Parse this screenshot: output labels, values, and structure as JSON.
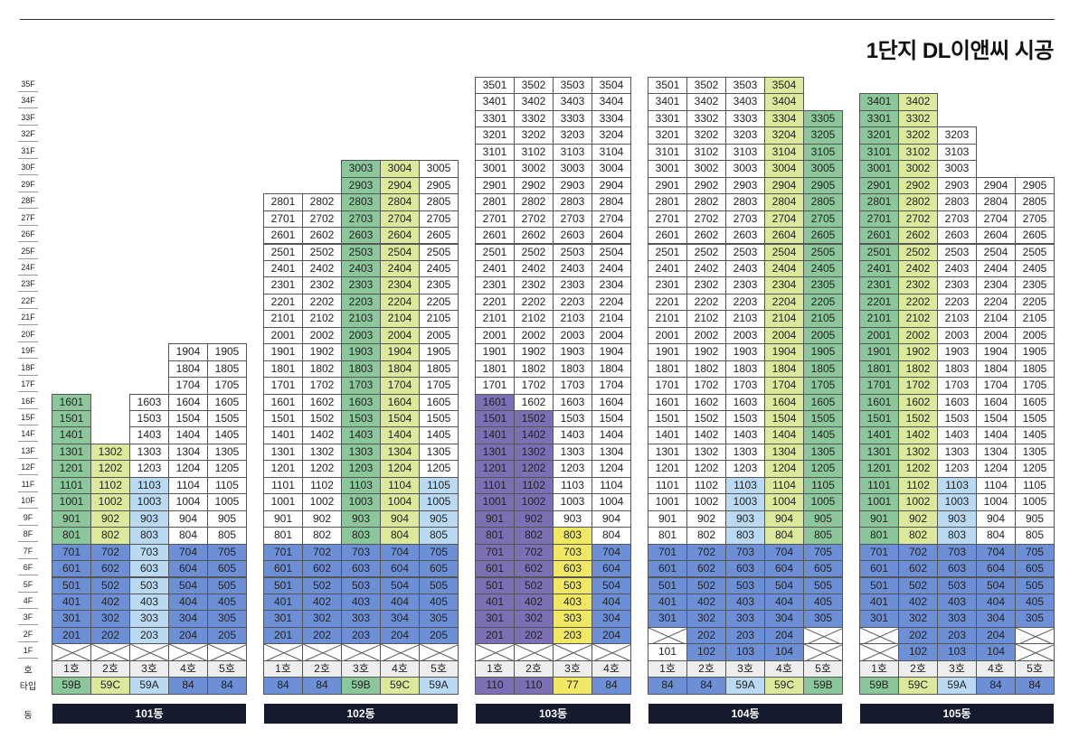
{
  "title": "1단지 DL이앤씨 시공",
  "floors": [
    "35F",
    "34F",
    "33F",
    "32F",
    "31F",
    "30F",
    "29F",
    "28F",
    "27F",
    "26F",
    "25F",
    "24F",
    "23F",
    "22F",
    "21F",
    "20F",
    "19F",
    "18F",
    "17F",
    "16F",
    "15F",
    "14F",
    "13F",
    "12F",
    "11F",
    "10F",
    "9F",
    "8F",
    "7F",
    "6F",
    "5F",
    "4F",
    "3F",
    "2F",
    "1F"
  ],
  "row_labels": {
    "ho": "호",
    "type": "타입",
    "dong": "동"
  },
  "colors": {
    "g": "#8cc79b",
    "y": "#dce89c",
    "lb": "#b9daf2",
    "b": "#6d8fd6",
    "p": "#7c6fb4",
    "ye": "#f0e764",
    "gr": "#eeeeee",
    "w": "#ffffff",
    "bar": "#151a2e"
  },
  "buildings": [
    {
      "name": "101동",
      "ho": [
        "1호",
        "2호",
        "3호",
        "4호",
        "5호"
      ],
      "types": [
        "59B",
        "59C",
        "59A",
        "84",
        "84"
      ],
      "type_colors": [
        "g",
        "y",
        "lb",
        "b",
        "b"
      ],
      "cols": [
        {
          "top": 16,
          "ranges": [
            [
              2,
              7,
              "b"
            ],
            [
              8,
              16,
              "g"
            ]
          ],
          "x1": true
        },
        {
          "top": 13,
          "ranges": [
            [
              2,
              7,
              "b"
            ],
            [
              8,
              13,
              "y"
            ]
          ],
          "x1": true
        },
        {
          "top": 16,
          "ranges": [
            [
              2,
              7,
              "lb"
            ],
            [
              8,
              11,
              "lb"
            ]
          ],
          "x1": true
        },
        {
          "top": 19,
          "ranges": [
            [
              2,
              7,
              "b"
            ]
          ],
          "x1": true
        },
        {
          "top": 19,
          "ranges": [
            [
              2,
              7,
              "b"
            ]
          ],
          "x1": true
        }
      ]
    },
    {
      "name": "102동",
      "ho": [
        "1호",
        "2호",
        "3호",
        "4호",
        "5호"
      ],
      "types": [
        "84",
        "84",
        "59B",
        "59C",
        "59A"
      ],
      "type_colors": [
        "b",
        "b",
        "g",
        "y",
        "lb"
      ],
      "cols": [
        {
          "top": 28,
          "ranges": [
            [
              2,
              7,
              "b"
            ]
          ],
          "x1": true
        },
        {
          "top": 28,
          "ranges": [
            [
              2,
              7,
              "b"
            ]
          ],
          "x1": true
        },
        {
          "top": 30,
          "ranges": [
            [
              2,
              7,
              "b"
            ],
            [
              8,
              30,
              "g"
            ]
          ],
          "x1": true
        },
        {
          "top": 30,
          "ranges": [
            [
              2,
              7,
              "b"
            ],
            [
              8,
              30,
              "y"
            ]
          ],
          "x1": true
        },
        {
          "top": 30,
          "ranges": [
            [
              2,
              7,
              "b"
            ],
            [
              8,
              11,
              "lb"
            ]
          ],
          "x1": true
        }
      ]
    },
    {
      "name": "103동",
      "ho": [
        "1호",
        "2호",
        "3호",
        "4호"
      ],
      "types": [
        "110",
        "110",
        "77",
        "84"
      ],
      "type_colors": [
        "p",
        "p",
        "ye",
        "b"
      ],
      "cols": [
        {
          "top": 35,
          "ranges": [
            [
              2,
              16,
              "p"
            ]
          ],
          "x1": true
        },
        {
          "top": 35,
          "ranges": [
            [
              2,
              15,
              "p"
            ]
          ],
          "x1": true
        },
        {
          "top": 35,
          "ranges": [
            [
              2,
              8,
              "ye"
            ]
          ],
          "x1": true
        },
        {
          "top": 35,
          "ranges": [
            [
              2,
              7,
              "b"
            ]
          ],
          "x1": true
        }
      ]
    },
    {
      "name": "104동",
      "ho": [
        "1호",
        "2호",
        "3호",
        "4호",
        "5호"
      ],
      "types": [
        "84",
        "84",
        "59A",
        "59C",
        "59B"
      ],
      "type_colors": [
        "b",
        "b",
        "lb",
        "y",
        "g"
      ],
      "cols": [
        {
          "top": 35,
          "ranges": [
            [
              3,
              7,
              "b"
            ]
          ],
          "x1": false,
          "x2": true
        },
        {
          "top": 35,
          "ranges": [
            [
              1,
              7,
              "b"
            ]
          ],
          "x1": false
        },
        {
          "top": 35,
          "ranges": [
            [
              1,
              7,
              "b"
            ],
            [
              8,
              11,
              "lb"
            ]
          ],
          "x1": false
        },
        {
          "top": 35,
          "ranges": [
            [
              1,
              7,
              "b"
            ],
            [
              8,
              35,
              "y"
            ]
          ],
          "x1": false
        },
        {
          "top": 33,
          "ranges": [
            [
              3,
              7,
              "b"
            ],
            [
              8,
              33,
              "g"
            ]
          ],
          "x1": true,
          "x2": true
        }
      ]
    },
    {
      "name": "105동",
      "ho": [
        "1호",
        "2호",
        "3호",
        "4호",
        "5호"
      ],
      "types": [
        "59B",
        "59C",
        "59A",
        "84",
        "84"
      ],
      "type_colors": [
        "g",
        "y",
        "lb",
        "b",
        "b"
      ],
      "cols": [
        {
          "top": 34,
          "ranges": [
            [
              3,
              7,
              "b"
            ],
            [
              8,
              34,
              "g"
            ]
          ],
          "x1": true,
          "x2": true
        },
        {
          "top": 34,
          "ranges": [
            [
              1,
              7,
              "b"
            ],
            [
              8,
              34,
              "y"
            ]
          ],
          "x1": false
        },
        {
          "top": 32,
          "ranges": [
            [
              1,
              7,
              "b"
            ],
            [
              8,
              11,
              "lb"
            ]
          ],
          "x1": false
        },
        {
          "top": 29,
          "ranges": [
            [
              1,
              7,
              "b"
            ]
          ],
          "x1": false
        },
        {
          "top": 29,
          "ranges": [
            [
              3,
              7,
              "b"
            ]
          ],
          "x1": true,
          "x2": true
        }
      ]
    }
  ]
}
